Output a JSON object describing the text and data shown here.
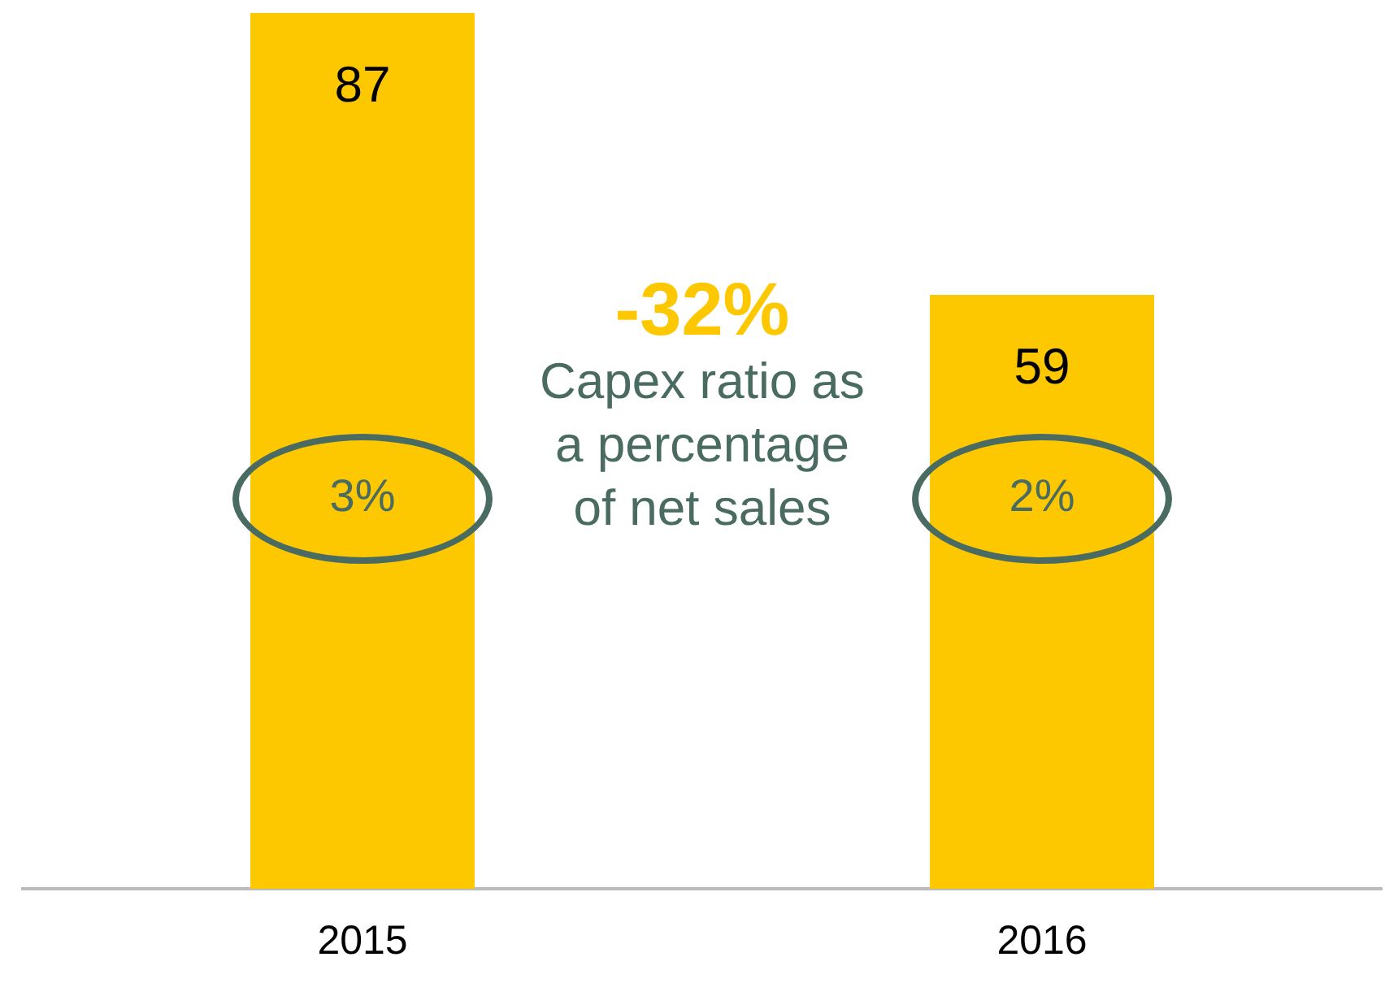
{
  "chart_data": {
    "type": "bar",
    "categories": [
      "2015",
      "2016"
    ],
    "values": [
      87,
      59
    ],
    "color": "#fdc800",
    "data_labels": true,
    "annotations": [
      "3%",
      "2%",
      "-32%",
      "Capex ratio as a percentage of net sales"
    ]
  }
}
